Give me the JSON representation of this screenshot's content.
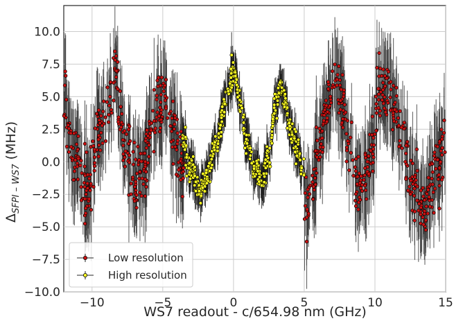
{
  "chart_data": {
    "type": "scatter",
    "xlabel": "WS7 readout - c/654.98 nm (GHz)",
    "ylabel": "Δ_{SFPI – WS7} (MHz)",
    "xlim": [
      -12,
      15
    ],
    "ylim": [
      -10,
      12
    ],
    "x_ticks": [
      -10,
      -5,
      0,
      5,
      10,
      15
    ],
    "x_tick_labels": [
      "−10",
      "−5",
      "0",
      "5",
      "10",
      "15"
    ],
    "y_ticks": [
      -10,
      -7.5,
      -5,
      -2.5,
      0,
      2.5,
      5,
      7.5,
      10
    ],
    "y_tick_labels": [
      "−10.0",
      "−7.5",
      "−5.0",
      "−2.5",
      "0.0",
      "2.5",
      "5.0",
      "7.5",
      "10.0"
    ],
    "grid": true,
    "legend_position": "lower-left",
    "error_bars": true,
    "series": [
      {
        "name": "Low resolution",
        "color": "#cc1111",
        "x_ranges": [
          [
            -12,
            -3.4
          ],
          [
            5.0,
            15
          ]
        ],
        "anchors": {
          "x": [
            -12,
            -11.6,
            -11.2,
            -10.7,
            -10.2,
            -9.6,
            -9.0,
            -8.4,
            -8.0,
            -7.5,
            -6.9,
            -6.4,
            -5.8,
            -5.2,
            -4.6,
            -4.0,
            -3.4,
            5.0,
            5.5,
            6.0,
            6.6,
            7.2,
            7.8,
            8.2,
            8.8,
            9.4,
            9.8,
            10.3,
            10.9,
            11.4,
            11.9,
            12.3,
            12.8,
            13.4,
            13.9,
            14.4,
            15.0
          ],
          "y": [
            5.0,
            2.0,
            0.5,
            -1.5,
            -2.5,
            2.0,
            4.5,
            6.5,
            3.0,
            0.5,
            -1.5,
            -0.5,
            2.5,
            4.5,
            4.0,
            1.5,
            -0.5,
            -4.0,
            -2.5,
            1.0,
            4.0,
            7.0,
            4.0,
            1.0,
            -2.0,
            -1.0,
            1.5,
            5.0,
            5.5,
            4.0,
            2.0,
            0.0,
            -2.0,
            -3.5,
            -2.5,
            -0.5,
            1.0
          ]
        },
        "noise_sd": 1.2,
        "error_halfwidth_range": [
          1.5,
          4.0
        ]
      },
      {
        "name": "High resolution",
        "color": "#ffff22",
        "x_ranges": [
          [
            -3.6,
            5.0
          ]
        ],
        "anchors": {
          "x": [
            -3.6,
            -3.0,
            -2.4,
            -1.8,
            -1.2,
            -0.6,
            0.0,
            0.5,
            1.0,
            1.5,
            2.0,
            2.5,
            3.0,
            3.3,
            3.6,
            4.0,
            4.5,
            5.0
          ],
          "y": [
            1.5,
            -0.5,
            -2.3,
            -1.0,
            1.5,
            4.5,
            6.8,
            4.5,
            1.5,
            -0.5,
            -1.5,
            0.5,
            4.5,
            5.8,
            5.0,
            2.5,
            1.0,
            -1.0
          ]
        },
        "noise_sd": 0.5,
        "error_halfwidth_range": [
          0.8,
          1.8
        ]
      }
    ]
  }
}
